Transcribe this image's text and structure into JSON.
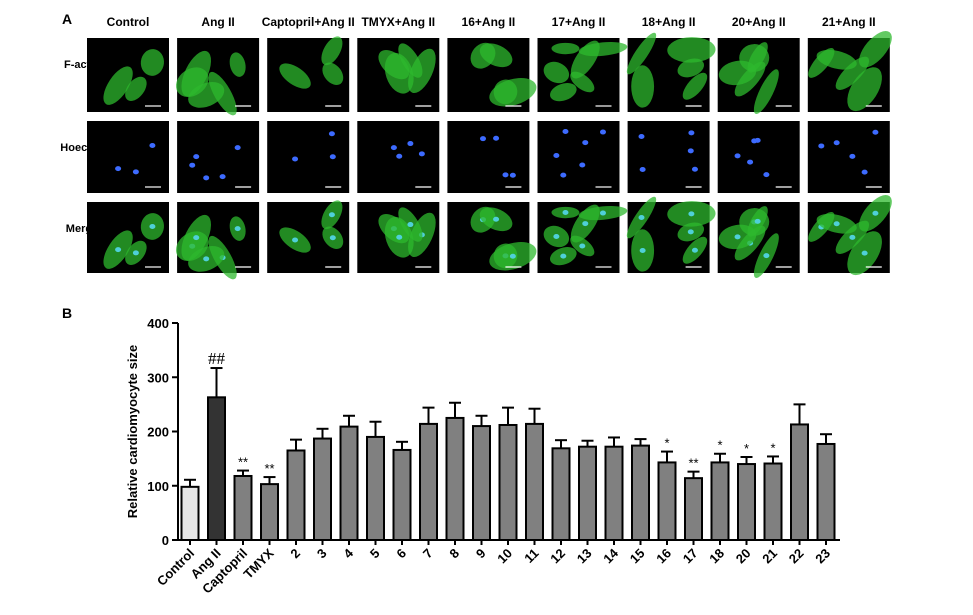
{
  "panel_a": {
    "label": "A",
    "columns": [
      "Control",
      "Ang II",
      "Captopril+Ang II",
      "TMYX+Ang II",
      "16+Ang II",
      "17+Ang II",
      "18+Ang II",
      "20+Ang II",
      "21+Ang II"
    ],
    "rows": [
      "F-actin",
      "Hoechst",
      "Merge"
    ]
  },
  "panel_b": {
    "label": "B"
  },
  "chart_data": {
    "type": "bar",
    "ylabel": "Relative cardiomyocyte size",
    "categories": [
      "Control",
      "Ang II",
      "Captopril",
      "TMYX",
      "2",
      "3",
      "4",
      "5",
      "6",
      "7",
      "8",
      "9",
      "10",
      "11",
      "12",
      "13",
      "14",
      "15",
      "16",
      "17",
      "18",
      "20",
      "21",
      "22",
      "23"
    ],
    "values": [
      98,
      263,
      118,
      103,
      165,
      187,
      209,
      190,
      166,
      214,
      225,
      210,
      212,
      214,
      169,
      172,
      172,
      174,
      143,
      114,
      143,
      140,
      141,
      213,
      177
    ],
    "errors": [
      13,
      54,
      10,
      13,
      20,
      18,
      20,
      28,
      15,
      30,
      28,
      19,
      32,
      28,
      15,
      11,
      17,
      12,
      20,
      12,
      16,
      13,
      13,
      37,
      18
    ],
    "annotations": [
      null,
      "##",
      "**",
      "**",
      null,
      null,
      null,
      null,
      null,
      null,
      null,
      null,
      null,
      null,
      null,
      null,
      null,
      null,
      "*",
      "**",
      "*",
      "*",
      "*",
      null,
      null
    ],
    "colors": [
      "#e6e6e6",
      "#333333",
      "#808080",
      "#808080",
      "#808080",
      "#808080",
      "#808080",
      "#808080",
      "#808080",
      "#808080",
      "#808080",
      "#808080",
      "#808080",
      "#808080",
      "#808080",
      "#808080",
      "#808080",
      "#808080",
      "#808080",
      "#808080",
      "#808080",
      "#808080",
      "#808080",
      "#808080",
      "#808080"
    ],
    "ylim": [
      0,
      400
    ],
    "yticks": [
      0,
      100,
      200,
      300,
      400
    ]
  }
}
